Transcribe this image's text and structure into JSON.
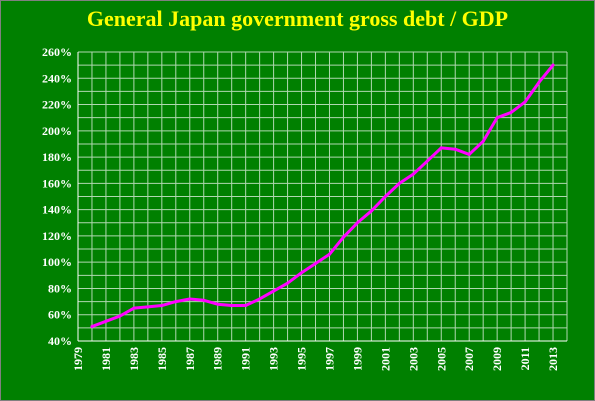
{
  "chart_data": {
    "type": "line",
    "title": "General Japan government gross debt / GDP",
    "xlabel": "",
    "ylabel": "",
    "xlim": [
      1979,
      2014
    ],
    "ylim": [
      40,
      260
    ],
    "y_ticks": [
      40,
      60,
      80,
      100,
      120,
      140,
      160,
      180,
      200,
      220,
      240,
      260
    ],
    "y_tick_labels": [
      "40%",
      "60%",
      "80%",
      "100%",
      "120%",
      "140%",
      "160%",
      "180%",
      "200%",
      "220%",
      "240%",
      "260%"
    ],
    "x_tick_labels": [
      "1979",
      "1981",
      "1983",
      "1985",
      "1987",
      "1989",
      "1991",
      "1993",
      "1995",
      "1997",
      "1999",
      "2001",
      "2003",
      "2005",
      "2007",
      "2009",
      "2011",
      "2013"
    ],
    "grid": true,
    "legend": "none",
    "colors": {
      "plot_background": "#008000",
      "page_background": "#000000",
      "grid": "#b0d8b0",
      "series_line": "#ff00ff",
      "title": "#ffff00",
      "tick_labels": "#ffffff"
    },
    "series": [
      {
        "x": [
          1980,
          1981,
          1982,
          1983,
          1984,
          1985,
          1986,
          1987,
          1988,
          1989,
          1990,
          1991,
          1992,
          1993,
          1994,
          1995,
          1996,
          1997,
          1998,
          1999,
          2000,
          2001,
          2002,
          2003,
          2004,
          2005,
          2006,
          2007,
          2008,
          2009,
          2010,
          2011,
          2012,
          2013
        ],
        "values": [
          51,
          55,
          59,
          65,
          66,
          67,
          70,
          72,
          71,
          68,
          67,
          67,
          72,
          78,
          84,
          92,
          99,
          106,
          119,
          130,
          139,
          150,
          160,
          167,
          177,
          187,
          186,
          182,
          192,
          210,
          214,
          222,
          237,
          250
        ]
      }
    ]
  }
}
